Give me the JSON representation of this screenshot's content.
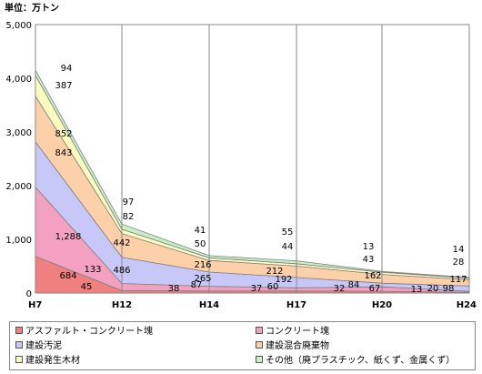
{
  "chart_data": {
    "type": "area",
    "stacked": true,
    "unit_label": "単位：万トン",
    "categories": [
      "H7",
      "H12",
      "H14",
      "H17",
      "H20",
      "H24"
    ],
    "ylim": [
      0,
      5000
    ],
    "yticks": [
      "0",
      "1,000",
      "2,000",
      "3,000",
      "4,000",
      "5,000"
    ],
    "grid": "vertical",
    "legend_position": "bottom",
    "series": [
      {
        "name": "アスファルト・コンクリート塊",
        "color": "#f08080",
        "values": [
          684,
          45,
          38,
          37,
          32,
          13
        ],
        "labels": [
          "684",
          "45",
          "38",
          "37",
          "32",
          "13"
        ]
      },
      {
        "name": "コンクリート塊",
        "color": "#f4a0c0",
        "values": [
          1288,
          133,
          87,
          60,
          84,
          20
        ],
        "labels": [
          "1,288",
          "133",
          "87",
          "60",
          "84",
          "20"
        ]
      },
      {
        "name": "建設汚泥",
        "color": "#c8c8f8",
        "values": [
          843,
          486,
          265,
          192,
          67,
          98
        ],
        "labels": [
          "843",
          "486",
          "265",
          "192",
          "67",
          "98"
        ]
      },
      {
        "name": "建設混合廃棄物",
        "color": "#fcd0a8",
        "values": [
          852,
          442,
          216,
          212,
          162,
          117
        ],
        "labels": [
          "852",
          "442",
          "216",
          "212",
          "162",
          "117"
        ]
      },
      {
        "name": "建設発生木材",
        "color": "#fcfcc0",
        "values": [
          387,
          82,
          50,
          44,
          43,
          28
        ],
        "labels": [
          "387",
          "82",
          "50",
          "44",
          "43",
          "28"
        ]
      },
      {
        "name": "その他（廃プラスチック、紙くず、金属くず）",
        "color": "#c8f0c8",
        "values": [
          94,
          97,
          41,
          55,
          13,
          14
        ],
        "labels": [
          "94",
          "97",
          "41",
          "55",
          "13",
          "14"
        ]
      }
    ]
  }
}
